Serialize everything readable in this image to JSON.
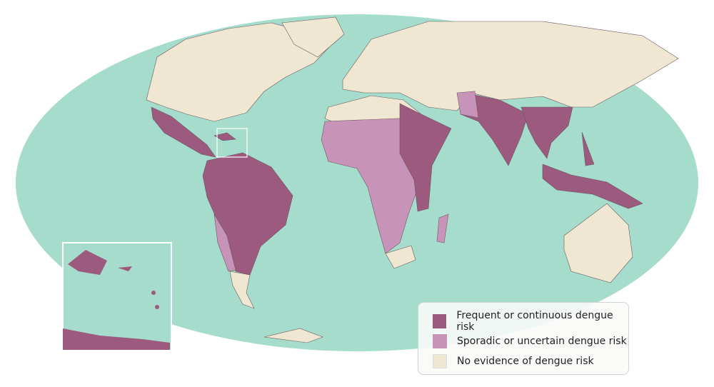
{
  "colors": {
    "ocean": "#a6dccb",
    "no_risk": "#efe7d1",
    "frequent": "#9b5a7e",
    "sporadic": "#c893b8",
    "border": "#6d5a63"
  },
  "legend": [
    {
      "label": "Frequent or continuous dengue risk",
      "color": "#9b5a7e"
    },
    {
      "label": "Sporadic or uncertain dengue risk",
      "color": "#c893b8"
    },
    {
      "label": "No evidence of dengue risk",
      "color": "#efe7d1"
    }
  ],
  "inset": {
    "region": "Caribbean"
  }
}
